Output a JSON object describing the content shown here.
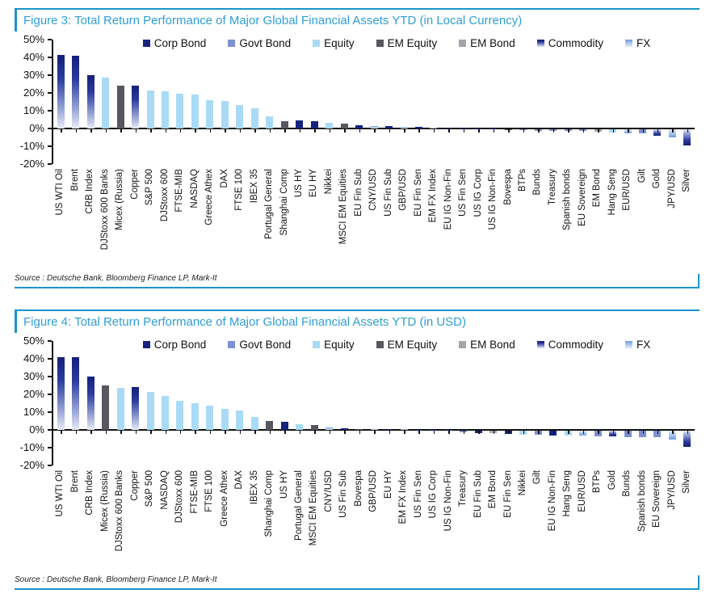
{
  "figures": [
    {
      "title": "Figure 3: Total Return Performance of Major Global Financial Assets YTD (in Local Currency)",
      "source": "Source : Deutsche Bank, Bloomberg Finance LP, Mark-It"
    },
    {
      "title": "Figure 4: Total Return Performance of Major Global Financial Assets YTD (in USD)",
      "source": "Source : Deutsche Bank, Bloomberg Finance LP, Mark-It"
    }
  ],
  "colors": {
    "accent_line": "#1b95c9",
    "title_text": "#2e9fd6",
    "corp_bond": "#16237d",
    "govt_bond": "#7e90d2",
    "equity": "#a9dbf6",
    "em_equity": "#57585f",
    "em_bond": "#a3a5ab",
    "commodity_dark": "#131f78",
    "fx_blue": "#6f9cdd"
  },
  "chart_data": [
    {
      "type": "bar",
      "title": "Figure 3: Total Return Performance of Major Global Financial Assets YTD (in Local Currency)",
      "xlabel": "",
      "ylabel": "",
      "ylim": [
        -20,
        50
      ],
      "grid": false,
      "legend_position": "top",
      "yticks": [
        "50%",
        "40%",
        "30%",
        "20%",
        "10%",
        "0%",
        "-10%",
        "-20%"
      ],
      "legend": [
        "Corp Bond",
        "Govt Bond",
        "Equity",
        "EM Equity",
        "EM Bond",
        "Commodity",
        "FX"
      ],
      "bars": [
        {
          "label": "US WTI Oil",
          "value": 41.5,
          "series": "Commodity"
        },
        {
          "label": "Brent",
          "value": 41.0,
          "series": "Commodity"
        },
        {
          "label": "CRB Index",
          "value": 30.0,
          "series": "Commodity"
        },
        {
          "label": "DJStoxx 600 Banks",
          "value": 28.5,
          "series": "Equity"
        },
        {
          "label": "Micex (Russia)",
          "value": 24.0,
          "series": "EM Equity"
        },
        {
          "label": "Copper",
          "value": 24.0,
          "series": "Commodity"
        },
        {
          "label": "S&P 500",
          "value": 21.5,
          "series": "Equity"
        },
        {
          "label": "DJStoxx 600",
          "value": 21.0,
          "series": "Equity"
        },
        {
          "label": "FTSE-MIB",
          "value": 19.5,
          "series": "Equity"
        },
        {
          "label": "NASDAQ",
          "value": 19.0,
          "series": "Equity"
        },
        {
          "label": "Greece Athex",
          "value": 16.0,
          "series": "Equity"
        },
        {
          "label": "DAX",
          "value": 15.5,
          "series": "Equity"
        },
        {
          "label": "FTSE 100",
          "value": 13.0,
          "series": "Equity"
        },
        {
          "label": "IBEX 35",
          "value": 11.5,
          "series": "Equity"
        },
        {
          "label": "Portugal General",
          "value": 7.0,
          "series": "Equity"
        },
        {
          "label": "Shanghai Comp",
          "value": 4.3,
          "series": "EM Equity"
        },
        {
          "label": "US HY",
          "value": 4.4,
          "series": "Corp Bond"
        },
        {
          "label": "EU HY",
          "value": 4.0,
          "series": "Corp Bond"
        },
        {
          "label": "Nikkei",
          "value": 3.3,
          "series": "Equity"
        },
        {
          "label": "MSCI EM Equities",
          "value": 2.7,
          "series": "EM Equity"
        },
        {
          "label": "EU Fin Sub",
          "value": 1.8,
          "series": "Corp Bond"
        },
        {
          "label": "CNY/USD",
          "value": 1.3,
          "series": "FX"
        },
        {
          "label": "US Fin Sub",
          "value": 1.2,
          "series": "Corp Bond"
        },
        {
          "label": "GBP/USD",
          "value": 0.9,
          "series": "FX"
        },
        {
          "label": "EU Fin Sen",
          "value": 0.7,
          "series": "Corp Bond"
        },
        {
          "label": "EM FX Index",
          "value": 0.5,
          "series": "FX"
        },
        {
          "label": "EU IG Non-Fin",
          "value": 0.4,
          "series": "Corp Bond"
        },
        {
          "label": "US Fin Sen",
          "value": 0.3,
          "series": "Corp Bond"
        },
        {
          "label": "US IG Corp",
          "value": 0.2,
          "series": "Corp Bond"
        },
        {
          "label": "US IG Non-Fin",
          "value": 0.1,
          "series": "Corp Bond"
        },
        {
          "label": "Bovespa",
          "value": -0.2,
          "series": "EM Equity"
        },
        {
          "label": "BTPs",
          "value": -0.6,
          "series": "Govt Bond"
        },
        {
          "label": "Bunds",
          "value": -0.8,
          "series": "Govt Bond"
        },
        {
          "label": "Treasury",
          "value": -0.9,
          "series": "Govt Bond"
        },
        {
          "label": "Spanish bonds",
          "value": -1.0,
          "series": "Govt Bond"
        },
        {
          "label": "EU Sovereign",
          "value": -1.1,
          "series": "Govt Bond"
        },
        {
          "label": "EM Bond",
          "value": -1.2,
          "series": "EM Bond"
        },
        {
          "label": "Hang Seng",
          "value": -1.7,
          "series": "Equity"
        },
        {
          "label": "EUR/USD",
          "value": -2.1,
          "series": "FX"
        },
        {
          "label": "Gilt",
          "value": -2.4,
          "series": "Govt Bond"
        },
        {
          "label": "Gold",
          "value": -3.5,
          "series": "Commodity"
        },
        {
          "label": "JPY/USD",
          "value": -4.5,
          "series": "FX"
        },
        {
          "label": "Silver",
          "value": -9.0,
          "series": "Commodity"
        }
      ]
    },
    {
      "type": "bar",
      "title": "Figure 4: Total Return Performance of Major Global Financial Assets YTD (in USD)",
      "xlabel": "",
      "ylabel": "",
      "ylim": [
        -20,
        50
      ],
      "grid": false,
      "legend_position": "top",
      "yticks": [
        "50%",
        "40%",
        "30%",
        "20%",
        "10%",
        "0%",
        "-10%",
        "-20%"
      ],
      "legend": [
        "Corp Bond",
        "Govt Bond",
        "Equity",
        "EM Equity",
        "EM Bond",
        "Commodity",
        "FX"
      ],
      "bars": [
        {
          "label": "US WTI Oil",
          "value": 41.0,
          "series": "Commodity"
        },
        {
          "label": "Brent",
          "value": 41.0,
          "series": "Commodity"
        },
        {
          "label": "CRB Index",
          "value": 30.0,
          "series": "Commodity"
        },
        {
          "label": "Micex (Russia)",
          "value": 25.0,
          "series": "EM Equity"
        },
        {
          "label": "DJStoxx 600 Banks",
          "value": 23.5,
          "series": "Equity"
        },
        {
          "label": "Copper",
          "value": 24.0,
          "series": "Commodity"
        },
        {
          "label": "S&P 500",
          "value": 21.5,
          "series": "Equity"
        },
        {
          "label": "NASDAQ",
          "value": 19.0,
          "series": "Equity"
        },
        {
          "label": "DJStoxx 600",
          "value": 16.5,
          "series": "Equity"
        },
        {
          "label": "FTSE-MIB",
          "value": 15.0,
          "series": "Equity"
        },
        {
          "label": "FTSE 100",
          "value": 13.5,
          "series": "Equity"
        },
        {
          "label": "Greece Athex",
          "value": 12.0,
          "series": "Equity"
        },
        {
          "label": "DAX",
          "value": 11.0,
          "series": "Equity"
        },
        {
          "label": "IBEX 35",
          "value": 7.5,
          "series": "Equity"
        },
        {
          "label": "Shanghai Comp",
          "value": 5.0,
          "series": "EM Equity"
        },
        {
          "label": "US HY",
          "value": 4.4,
          "series": "Corp Bond"
        },
        {
          "label": "Portugal General",
          "value": 3.0,
          "series": "Equity"
        },
        {
          "label": "MSCI EM Equities",
          "value": 2.8,
          "series": "EM Equity"
        },
        {
          "label": "CNY/USD",
          "value": 1.2,
          "series": "FX"
        },
        {
          "label": "US Fin Sub",
          "value": 1.1,
          "series": "Corp Bond"
        },
        {
          "label": "Bovespa",
          "value": 0.6,
          "series": "EM Equity"
        },
        {
          "label": "GBP/USD",
          "value": 0.5,
          "series": "FX"
        },
        {
          "label": "EU HY",
          "value": 0.4,
          "series": "Corp Bond"
        },
        {
          "label": "EM FX Index",
          "value": 0.3,
          "series": "FX"
        },
        {
          "label": "US Fin Sen",
          "value": 0.2,
          "series": "Corp Bond"
        },
        {
          "label": "US IG Corp",
          "value": 0.2,
          "series": "Corp Bond"
        },
        {
          "label": "US IG Non-Fin",
          "value": 0.1,
          "series": "Corp Bond"
        },
        {
          "label": "Treasury",
          "value": -0.9,
          "series": "Govt Bond"
        },
        {
          "label": "EU Fin Sub",
          "value": -1.2,
          "series": "Corp Bond"
        },
        {
          "label": "EM Bond",
          "value": -1.5,
          "series": "EM Bond"
        },
        {
          "label": "EU Fin Sen",
          "value": -1.9,
          "series": "Corp Bond"
        },
        {
          "label": "Nikkei",
          "value": -2.1,
          "series": "Equity"
        },
        {
          "label": "Gilt",
          "value": -2.3,
          "series": "Govt Bond"
        },
        {
          "label": "EU IG Non-Fin",
          "value": -2.5,
          "series": "Corp Bond"
        },
        {
          "label": "Hang Seng",
          "value": -2.6,
          "series": "Equity"
        },
        {
          "label": "EUR/USD",
          "value": -2.8,
          "series": "FX"
        },
        {
          "label": "BTPs",
          "value": -3.0,
          "series": "Govt Bond"
        },
        {
          "label": "Gold",
          "value": -3.3,
          "series": "Commodity"
        },
        {
          "label": "Bunds",
          "value": -3.5,
          "series": "Govt Bond"
        },
        {
          "label": "Spanish bonds",
          "value": -3.6,
          "series": "Govt Bond"
        },
        {
          "label": "EU Sovereign",
          "value": -3.8,
          "series": "Govt Bond"
        },
        {
          "label": "JPY/USD",
          "value": -5.0,
          "series": "FX"
        },
        {
          "label": "Silver",
          "value": -9.3,
          "series": "Commodity"
        }
      ]
    }
  ]
}
